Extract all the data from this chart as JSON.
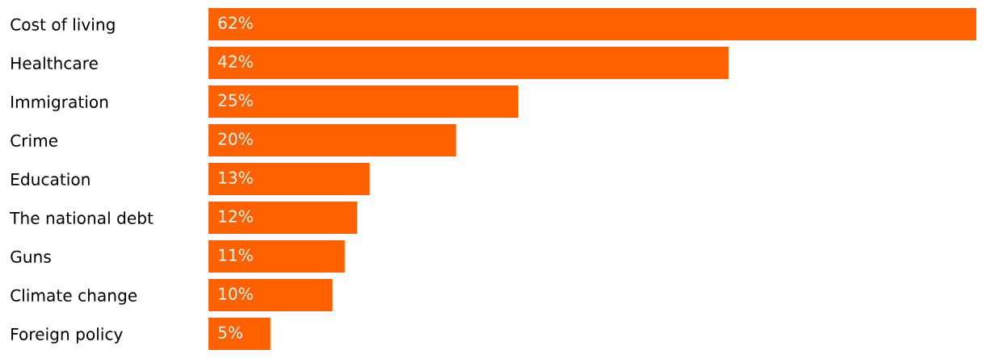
{
  "chart_data": {
    "type": "bar",
    "orientation": "horizontal",
    "categories": [
      "Cost of living",
      "Healthcare",
      "Immigration",
      "Crime",
      "Education",
      "The national debt",
      "Guns",
      "Climate change",
      "Foreign policy"
    ],
    "values": [
      62,
      42,
      25,
      20,
      13,
      12,
      11,
      10,
      5
    ],
    "value_labels": [
      "62%",
      "42%",
      "25%",
      "20%",
      "13%",
      "12%",
      "11%",
      "10%",
      "5%"
    ],
    "color": "#ff6100",
    "grid": false,
    "legend": false
  }
}
